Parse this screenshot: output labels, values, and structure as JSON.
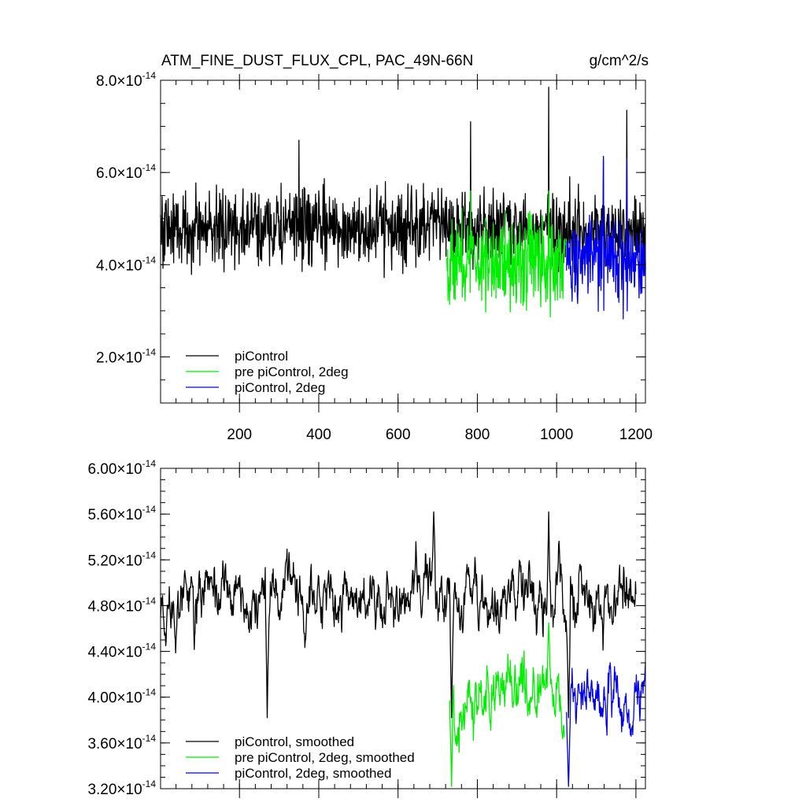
{
  "header": {
    "title": "ATM_FINE_DUST_FLUX_CPL, PAC_49N-66N",
    "units": "g/cm^2/s"
  },
  "chart_data": [
    {
      "type": "line",
      "title": "ATM_FINE_DUST_FLUX_CPL, PAC_49N-66N",
      "ylabel_units": "g/cm^2/s",
      "xlim": [
        1,
        1224
      ],
      "ylim": [
        1e-14,
        8e-14
      ],
      "x_ticks": [
        200,
        400,
        600,
        800,
        1000,
        1200
      ],
      "y_ticks": [
        {
          "mantissa": "8.0",
          "exponent": "-14",
          "value": 8e-14
        },
        {
          "mantissa": "6.0",
          "exponent": "-14",
          "value": 6e-14
        },
        {
          "mantissa": "4.0",
          "exponent": "-14",
          "value": 4e-14
        },
        {
          "mantissa": "2.0",
          "exponent": "-14",
          "value": 2e-14
        }
      ],
      "times_symbol": "×",
      "grid": false,
      "legend_position": "bottom-left",
      "series": [
        {
          "name": "piControl",
          "color": "#000000",
          "x_range": [
            1,
            1224
          ],
          "mean": 4.8e-14,
          "spread": 5.5e-15,
          "min": 3.2e-14,
          "max": 7.9e-14
        },
        {
          "name": "pre piControl, 2deg",
          "color": "#00ee00",
          "x_range": [
            723,
            1022
          ],
          "mean": 4.1e-14,
          "spread": 6.5e-15,
          "min": 2.2e-14,
          "max": 5.6e-14
        },
        {
          "name": "piControl, 2deg",
          "color": "#0000ee",
          "x_range": [
            1025,
            1224
          ],
          "mean": 4.1e-14,
          "spread": 6e-15,
          "min": 2.1e-14,
          "max": 6.3e-14
        }
      ],
      "peaks": [
        {
          "x": 980,
          "y": 7.85e-14
        },
        {
          "x": 1177,
          "y": 7.35e-14
        },
        {
          "x": 783,
          "y": 7.1e-14
        },
        {
          "x": 350,
          "y": 6.7e-14
        },
        {
          "x": 1118,
          "y": 6.35e-14
        }
      ]
    },
    {
      "type": "line",
      "xlim": [
        1,
        1224
      ],
      "ylim": [
        3.2e-14,
        6e-14
      ],
      "x_ticks": [
        200,
        400,
        600,
        800,
        1000,
        1200
      ],
      "y_ticks": [
        {
          "mantissa": "6.00",
          "exponent": "-14",
          "value": 6e-14
        },
        {
          "mantissa": "5.60",
          "exponent": "-14",
          "value": 5.6e-14
        },
        {
          "mantissa": "5.20",
          "exponent": "-14",
          "value": 5.2e-14
        },
        {
          "mantissa": "4.80",
          "exponent": "-14",
          "value": 4.8e-14
        },
        {
          "mantissa": "4.40",
          "exponent": "-14",
          "value": 4.4e-14
        },
        {
          "mantissa": "4.00",
          "exponent": "-14",
          "value": 4e-14
        },
        {
          "mantissa": "3.60",
          "exponent": "-14",
          "value": 3.6e-14
        },
        {
          "mantissa": "3.20",
          "exponent": "-14",
          "value": 3.2e-14
        }
      ],
      "times_symbol": "×",
      "grid": false,
      "legend_position": "bottom-left",
      "series": [
        {
          "name": "piControl, smoothed",
          "color": "#000000",
          "x_range": [
            1,
            1200
          ],
          "mean": 4.85e-14,
          "spread": 2.8e-15,
          "min": 3.82e-14,
          "max": 5.62e-14
        },
        {
          "name": "pre piControl, 2deg, smoothed",
          "color": "#00ee00",
          "x_range": [
            730,
            1020
          ],
          "mean": 4e-14,
          "spread": 3e-15,
          "min": 3.22e-14,
          "max": 4.65e-14
        },
        {
          "name": "piControl, 2deg, smoothed",
          "color": "#0000ee",
          "x_range": [
            1025,
            1224
          ],
          "mean": 3.95e-14,
          "spread": 2.8e-15,
          "min": 3.22e-14,
          "max": 4.7e-14
        }
      ],
      "peaks": [
        {
          "x": 690,
          "y": 5.62e-14
        },
        {
          "x": 980,
          "y": 5.62e-14
        },
        {
          "x": 270,
          "y": 3.82e-14
        },
        {
          "x": 735,
          "y": 3.22e-14
        },
        {
          "x": 1030,
          "y": 3.22e-14
        }
      ]
    }
  ]
}
